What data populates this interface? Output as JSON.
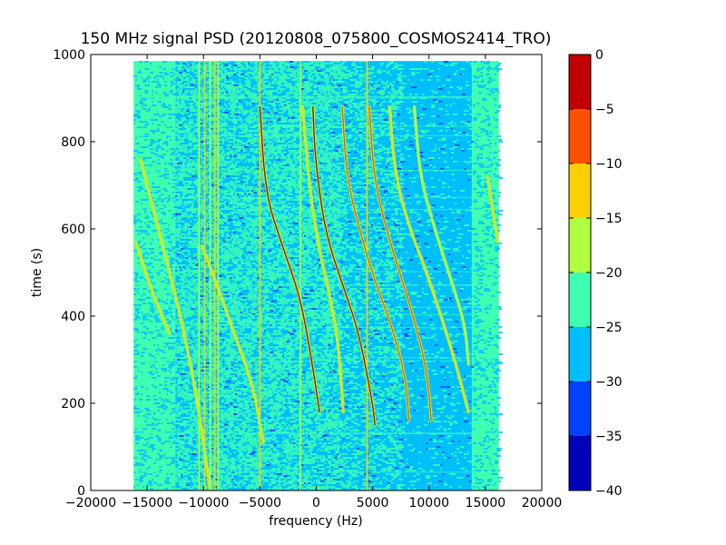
{
  "chart_data": {
    "type": "heatmap",
    "title": "150 MHz signal PSD (20120808_075800_COSMOS2414_TRO)",
    "xlabel": "frequency (Hz)",
    "ylabel": "time (s)",
    "xlim": [
      -20000,
      20000
    ],
    "ylim": [
      0,
      1000
    ],
    "x_ticks": [
      -20000,
      -15000,
      -10000,
      -5000,
      0,
      5000,
      10000,
      15000,
      20000
    ],
    "x_tick_labels": [
      "−20000",
      "−15000",
      "−10000",
      "−5000",
      "0",
      "5000",
      "10000",
      "15000",
      "20000"
    ],
    "y_ticks": [
      0,
      200,
      400,
      600,
      800,
      1000
    ],
    "y_tick_labels": [
      "0",
      "200",
      "400",
      "600",
      "800",
      "1000"
    ],
    "data_extent": {
      "x": [
        -16200,
        16200
      ],
      "y": [
        0,
        985
      ]
    },
    "background_bands": [
      {
        "x": [
          -16200,
          -12500
        ],
        "level": "-25 to -20"
      },
      {
        "x": [
          -12500,
          2000
        ],
        "level": "-30 to -25 (mixed)"
      },
      {
        "x": [
          2000,
          7500
        ],
        "level": "-30 to -25 (mixed)"
      },
      {
        "x": [
          7500,
          13800
        ],
        "level": "-30 to -25"
      },
      {
        "x": [
          13800,
          16200
        ],
        "level": "-25 to -20"
      }
    ],
    "vertical_lines_hz": [
      -10400,
      -9900,
      -9400,
      -9000,
      -8700,
      -5000,
      -1400,
      4500
    ],
    "doppler_traces": [
      {
        "points": [
          [
            -16000,
            570
          ],
          [
            -14500,
            450
          ],
          [
            -13000,
            360
          ]
        ],
        "peak_db": -15
      },
      {
        "points": [
          [
            -15600,
            760
          ],
          [
            -14000,
            600
          ],
          [
            -12000,
            400
          ],
          [
            -10500,
            200
          ],
          [
            -9400,
            0
          ]
        ],
        "peak_db": -15
      },
      {
        "points": [
          [
            -10100,
            560
          ],
          [
            -8500,
            450
          ],
          [
            -7000,
            340
          ],
          [
            -5600,
            240
          ],
          [
            -4700,
            110
          ]
        ],
        "peak_db": -15
      },
      {
        "points": [
          [
            -5000,
            880
          ],
          [
            -4500,
            680
          ],
          [
            -3000,
            560
          ],
          [
            -1500,
            450
          ],
          [
            -600,
            330
          ],
          [
            300,
            180
          ]
        ],
        "peak_db": -5
      },
      {
        "points": [
          [
            -1200,
            880
          ],
          [
            -700,
            720
          ],
          [
            100,
            570
          ],
          [
            1200,
            450
          ],
          [
            2000,
            330
          ],
          [
            2400,
            180
          ]
        ],
        "peak_db": -15
      },
      {
        "points": [
          [
            -300,
            880
          ],
          [
            -100,
            760
          ],
          [
            800,
            590
          ],
          [
            2500,
            460
          ],
          [
            3800,
            360
          ],
          [
            5000,
            200
          ],
          [
            5200,
            150
          ]
        ],
        "peak_db": -5
      },
      {
        "points": [
          [
            2300,
            880
          ],
          [
            2700,
            720
          ],
          [
            3800,
            600
          ],
          [
            5200,
            480
          ],
          [
            6800,
            370
          ],
          [
            8000,
            250
          ],
          [
            8200,
            160
          ]
        ],
        "peak_db": -10
      },
      {
        "points": [
          [
            4700,
            880
          ],
          [
            5100,
            720
          ],
          [
            6200,
            600
          ],
          [
            7400,
            500
          ],
          [
            8600,
            400
          ],
          [
            9800,
            280
          ],
          [
            10200,
            160
          ]
        ],
        "peak_db": -10
      },
      {
        "points": [
          [
            6500,
            880
          ],
          [
            7000,
            720
          ],
          [
            8300,
            600
          ],
          [
            9800,
            500
          ],
          [
            11200,
            390
          ],
          [
            12500,
            280
          ],
          [
            13500,
            180
          ]
        ],
        "peak_db": -15
      },
      {
        "points": [
          [
            8700,
            880
          ],
          [
            9200,
            720
          ],
          [
            10500,
            600
          ],
          [
            12000,
            480
          ],
          [
            13200,
            380
          ],
          [
            13500,
            290
          ]
        ],
        "peak_db": -20
      },
      {
        "points": [
          [
            15200,
            720
          ],
          [
            15600,
            650
          ],
          [
            16100,
            570
          ]
        ],
        "peak_db": -15
      }
    ],
    "colorbar": {
      "range": [
        -40,
        0
      ],
      "levels": [
        -40,
        -35,
        -30,
        -25,
        -20,
        -15,
        -10,
        -5,
        0
      ],
      "tick_labels": [
        "0",
        "−5",
        "−10",
        "−15",
        "−20",
        "−25",
        "−30",
        "−35",
        "−40"
      ],
      "colors": [
        "#0000b8",
        "#0040ff",
        "#00bfff",
        "#3fffb0",
        "#b0ff40",
        "#ffd000",
        "#ff5000",
        "#c00000"
      ]
    },
    "grid": false
  }
}
